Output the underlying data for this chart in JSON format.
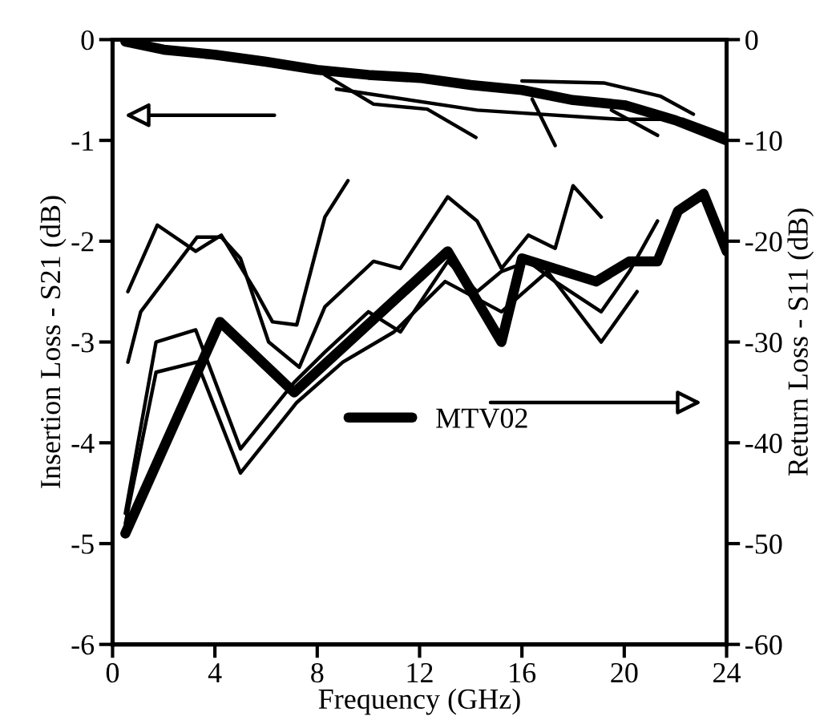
{
  "chart_data": {
    "type": "line",
    "xlabel": "Frequency (GHz)",
    "ylabel": "Insertion Loss - S21 (dB)",
    "y2label": "Return Loss - S11 (dB)",
    "xlim": [
      0,
      24
    ],
    "xticks": [
      0,
      4,
      8,
      12,
      16,
      20,
      24
    ],
    "ylim": [
      -6,
      0
    ],
    "yticks": [
      -6,
      -5,
      -4,
      -3,
      -2,
      -1,
      0
    ],
    "y2lim": [
      -60,
      0
    ],
    "y2ticks": [
      -60,
      -50,
      -40,
      -30,
      -20,
      -10,
      0
    ],
    "grid": false,
    "legend": "right",
    "marker": "none",
    "line_style": "solid",
    "series": [
      {
        "name": "MTV02",
        "color": "#000000",
        "x": [
          0.5,
          2,
          4,
          6,
          8,
          10,
          12,
          14,
          16,
          18,
          20,
          22,
          24
        ],
        "values": [
          -0.02,
          -0.1,
          -0.15,
          -0.22,
          -0.3,
          -0.35,
          -0.38,
          -0.45,
          -0.5,
          -0.6,
          -0.65,
          -0.8,
          -1.0
        ]
      },
      {
        "color": "#000000",
        "axis": "y2",
        "x": [
          0.5,
          4.2,
          7.1,
          13.1,
          15.2,
          16.0,
          18.9,
          20.2,
          21.3,
          22.1,
          23.1,
          24
        ],
        "values": [
          -49,
          -28,
          -35,
          -21,
          -30,
          -21.7,
          -24,
          -22,
          -22,
          -17,
          -15.3,
          -21
        ]
      },
      {
        "color": "#000000",
        "x": [
          8.3,
          10.2,
          12.3,
          14.2
        ],
        "values": [
          -0.35,
          -0.64,
          -0.69,
          -0.97
        ]
      },
      {
        "color": "#000000",
        "x": [
          8.75,
          14.25,
          19.8,
          22.3,
          24
        ],
        "values": [
          -0.49,
          -0.7,
          -0.79,
          -0.79,
          -0.95
        ]
      },
      {
        "color": "#000000",
        "x": [
          16,
          19.2,
          21.4,
          22.7
        ],
        "values": [
          -0.41,
          -0.43,
          -0.56,
          -0.74
        ]
      },
      {
        "color": "#000000",
        "x": [
          16.4,
          17.3
        ],
        "values": [
          -0.59,
          -1.05
        ]
      },
      {
        "color": "#000000",
        "x": [
          19.5,
          21.3
        ],
        "values": [
          -0.7,
          -0.95
        ]
      },
      {
        "color": "#000000",
        "axis": "y2",
        "x": [
          0.6,
          1.75,
          3.25,
          4.25,
          5.6,
          6.25,
          7.2,
          8.3,
          9.2
        ],
        "values": [
          -25,
          -18.4,
          -21,
          -19.4,
          -25,
          -28,
          -28.3,
          -17.6,
          -14
        ]
      },
      {
        "color": "#000000",
        "axis": "y2",
        "x": [
          0.6,
          1.1,
          3.3,
          4.25,
          5,
          6.1,
          7.3,
          8.3,
          10.2,
          11.25,
          13.1,
          14.25,
          15.2,
          16.25,
          17.3,
          18,
          19.1
        ],
        "values": [
          -32,
          -27,
          -19.6,
          -19.6,
          -21.7,
          -30,
          -32.5,
          -26.5,
          -22,
          -22.7,
          -15.6,
          -18,
          -22.7,
          -19.4,
          -20.7,
          -14.5,
          -17.6
        ]
      },
      {
        "color": "#000000",
        "axis": "y2",
        "x": [
          0.5,
          1.7,
          3.25,
          5,
          7.1,
          8.3,
          10,
          11.25,
          13.1,
          14.25,
          15.2,
          16.25,
          17.3,
          19.1,
          20.2,
          21.3
        ],
        "values": [
          -47,
          -30,
          -28.8,
          -40.6,
          -34,
          -31,
          -27,
          -29,
          -22,
          -25,
          -23,
          -22,
          -24,
          -27,
          -23,
          -18
        ]
      },
      {
        "color": "#000000",
        "axis": "y2",
        "x": [
          0.5,
          1.7,
          3.3,
          5,
          7.2,
          9,
          11,
          13,
          15.2,
          17,
          19.1,
          20.5
        ],
        "values": [
          -48,
          -33,
          -32,
          -43,
          -36,
          -32,
          -29,
          -24,
          -27,
          -23,
          -30,
          -25
        ]
      }
    ]
  }
}
